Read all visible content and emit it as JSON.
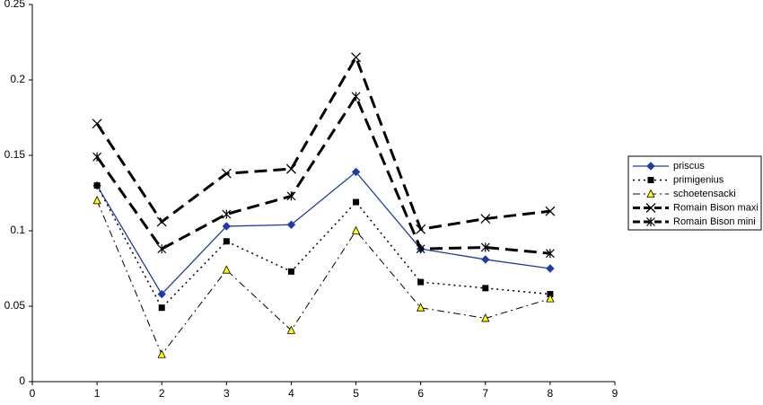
{
  "chart_data": {
    "type": "line",
    "x": [
      1,
      2,
      3,
      4,
      5,
      6,
      7,
      8
    ],
    "xlim": [
      0,
      9
    ],
    "xticks": [
      0,
      1,
      2,
      3,
      4,
      5,
      6,
      7,
      8,
      9
    ],
    "ylim": [
      0,
      0.25
    ],
    "yticks": [
      0,
      0.05,
      0.1,
      0.15,
      0.2,
      0.25
    ],
    "grid": false,
    "legend": "right",
    "series": [
      {
        "name": "priscus",
        "color": "#1f3ca0",
        "dash": "solid",
        "marker": "diamond",
        "values": [
          0.13,
          0.058,
          0.103,
          0.104,
          0.139,
          0.088,
          0.081,
          0.075
        ]
      },
      {
        "name": "primigenius",
        "color": "#000000",
        "dash": "dotted",
        "marker": "square",
        "values": [
          0.13,
          0.049,
          0.093,
          0.073,
          0.119,
          0.066,
          0.062,
          0.058
        ]
      },
      {
        "name": "schoetensacki",
        "color": "#000000",
        "dash": "dashdot",
        "marker": "triangle",
        "marker_fill": "#ffff00",
        "values": [
          0.12,
          0.018,
          0.074,
          0.034,
          0.1,
          0.049,
          0.042,
          0.055
        ]
      },
      {
        "name": "Romain Bison maxi",
        "color": "#000000",
        "dash": "dashed",
        "marker": "x",
        "values": [
          0.171,
          0.106,
          0.138,
          0.141,
          0.215,
          0.101,
          0.108,
          0.113
        ]
      },
      {
        "name": "Romain Bison mini",
        "color": "#000000",
        "dash": "dashed",
        "marker": "asterisk",
        "values": [
          0.149,
          0.088,
          0.111,
          0.123,
          0.189,
          0.088,
          0.089,
          0.085
        ]
      }
    ]
  }
}
